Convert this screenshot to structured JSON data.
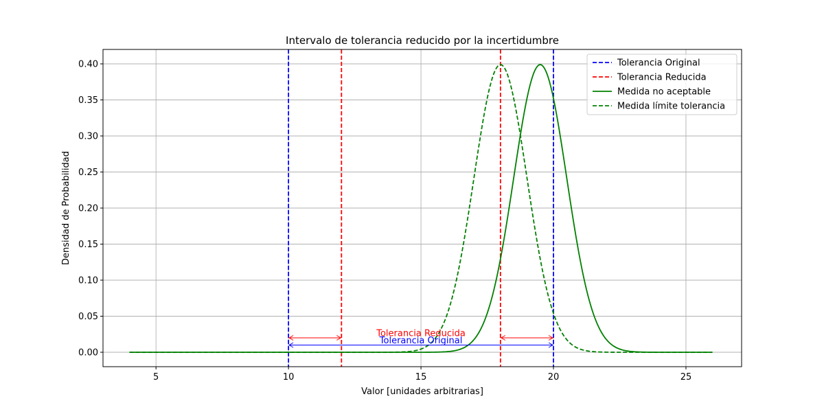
{
  "chart_data": {
    "type": "line",
    "title": "Intervalo de tolerancia reducido por la incertidumbre",
    "xlabel": "Valor [unidades arbitrarias]",
    "ylabel": "Densidad de Probabilidad",
    "xlim": [
      3,
      27.1
    ],
    "ylim": [
      -0.02,
      0.42
    ],
    "xticks": [
      5,
      10,
      15,
      20,
      25
    ],
    "yticks": [
      0.0,
      0.05,
      0.1,
      0.15,
      0.2,
      0.25,
      0.3,
      0.35,
      0.4
    ],
    "xtick_labels": [
      "5",
      "10",
      "15",
      "20",
      "25"
    ],
    "ytick_labels": [
      "0.00",
      "0.05",
      "0.10",
      "0.15",
      "0.20",
      "0.25",
      "0.30",
      "0.35",
      "0.40"
    ],
    "grid": true,
    "legend_position": "top-right",
    "vlines": [
      {
        "x": 10,
        "color": "#0000ff",
        "style": "dashed",
        "legend": "Tolerancia Original"
      },
      {
        "x": 20,
        "color": "#0000ff",
        "style": "dashed"
      },
      {
        "x": 12,
        "color": "#ff0000",
        "style": "dashed",
        "legend": "Tolerancia Reducida"
      },
      {
        "x": 18,
        "color": "#ff0000",
        "style": "dashed"
      }
    ],
    "series": [
      {
        "name": "Medida no aceptable",
        "distribution": "normal",
        "mean": 19.5,
        "std": 1.0,
        "x_range": [
          4,
          26
        ],
        "color": "#008000",
        "style": "solid"
      },
      {
        "name": "Medida límite tolerancia",
        "distribution": "normal",
        "mean": 18.0,
        "std": 1.0,
        "x_range": [
          4,
          26
        ],
        "color": "#008000",
        "style": "dashed"
      }
    ],
    "legend": [
      {
        "label": "Tolerancia Original",
        "color": "#0000ff",
        "style": "dashed"
      },
      {
        "label": "Tolerancia Reducida",
        "color": "#ff0000",
        "style": "dashed"
      },
      {
        "label": "Medida no aceptable",
        "color": "#008000",
        "style": "solid"
      },
      {
        "label": "Medida límite tolerancia",
        "color": "#008000",
        "style": "dashed"
      }
    ],
    "annotations": [
      {
        "kind": "double-arrow",
        "from": 10,
        "to": 20,
        "y": 0.01,
        "color": "#0000ff"
      },
      {
        "kind": "double-arrow",
        "from": 10,
        "to": 12,
        "y": 0.02,
        "color": "#ff0000"
      },
      {
        "kind": "double-arrow",
        "from": 18,
        "to": 20,
        "y": 0.02,
        "color": "#ff0000"
      },
      {
        "kind": "text",
        "text": "Tolerancia Original",
        "x": 15,
        "y": 0.0125,
        "color": "#0000ff"
      },
      {
        "kind": "text",
        "text": "Tolerancia Reducida",
        "x": 15,
        "y": 0.0225,
        "color": "#ff0000"
      }
    ]
  }
}
